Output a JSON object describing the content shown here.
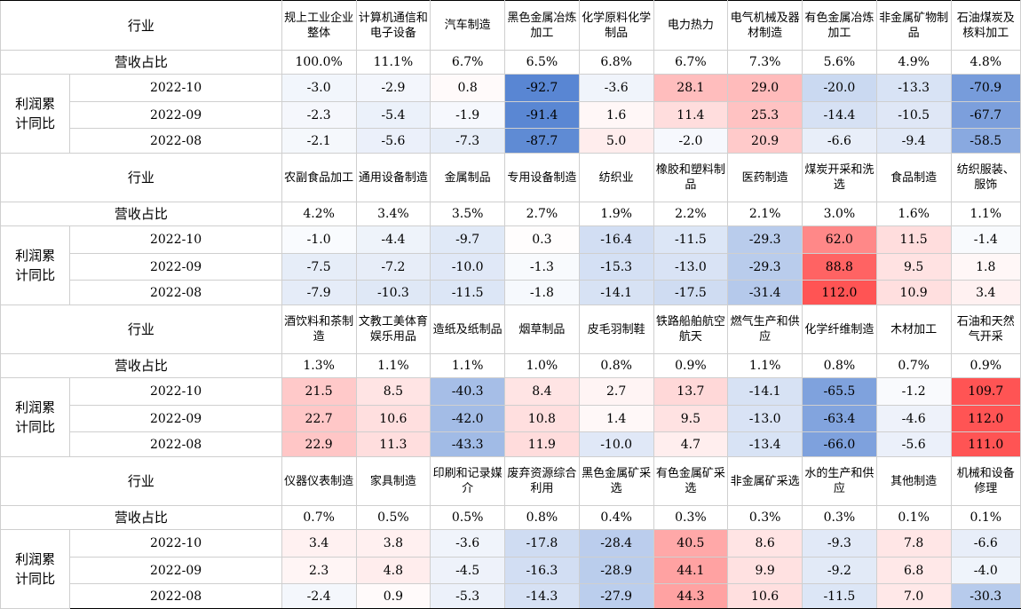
{
  "labels": {
    "industry": "行业",
    "revenue_share": "营收占比",
    "profit_yoy": "利润累计同比"
  },
  "dates": [
    "2022-10",
    "2022-09",
    "2022-08"
  ],
  "colors": {
    "positive": "#f05454",
    "negative": "#4f7fd0",
    "neutral": "#ffffff"
  },
  "blocks": [
    {
      "industries": [
        "规上工业企业整体",
        "计算机通信和电子设备",
        "汽车制造",
        "黑色金属冶炼加工",
        "化学原料化学制品",
        "电力热力",
        "电气机械及器材制造",
        "有色金属冶炼加工",
        "非金属矿物制品",
        "石油煤炭及核料加工"
      ],
      "shares": [
        "100.0%",
        "11.1%",
        "6.7%",
        "6.5%",
        "6.8%",
        "6.7%",
        "7.3%",
        "5.6%",
        "4.9%",
        "4.8%"
      ],
      "values": [
        [
          "-3.0",
          "-2.9",
          "0.8",
          "-92.7",
          "-3.6",
          "28.1",
          "29.0",
          "-20.0",
          "-13.3",
          "-70.9"
        ],
        [
          "-2.3",
          "-5.4",
          "-1.9",
          "-91.4",
          "1.6",
          "11.4",
          "25.3",
          "-14.4",
          "-10.5",
          "-67.7"
        ],
        [
          "-2.1",
          "-5.6",
          "-7.3",
          "-87.7",
          "5.0",
          "-2.0",
          "20.9",
          "-6.6",
          "-9.4",
          "-58.5"
        ]
      ]
    },
    {
      "industries": [
        "农副食品加工",
        "通用设备制造",
        "金属制品",
        "专用设备制造",
        "纺织业",
        "橡胶和塑料制品",
        "医药制造",
        "煤炭开采和洗选",
        "食品制造",
        "纺织服装、服饰"
      ],
      "shares": [
        "4.2%",
        "3.4%",
        "3.5%",
        "2.7%",
        "1.9%",
        "2.2%",
        "2.1%",
        "3.0%",
        "1.6%",
        "1.1%"
      ],
      "values": [
        [
          "-1.0",
          "-4.4",
          "-9.7",
          "0.3",
          "-16.4",
          "-11.5",
          "-29.3",
          "62.0",
          "11.5",
          "-1.4"
        ],
        [
          "-7.5",
          "-7.2",
          "-10.0",
          "-1.3",
          "-15.3",
          "-13.0",
          "-29.3",
          "88.8",
          "9.5",
          "1.8"
        ],
        [
          "-7.9",
          "-10.3",
          "-11.5",
          "-1.8",
          "-14.1",
          "-17.5",
          "-31.4",
          "112.0",
          "10.9",
          "3.4"
        ]
      ]
    },
    {
      "industries": [
        "酒饮料和茶制造",
        "文教工美体育娱乐用品",
        "造纸及纸制品",
        "烟草制品",
        "皮毛羽制鞋",
        "铁路船舶航空航天",
        "燃气生产和供应",
        "化学纤维制造",
        "木材加工",
        "石油和天然气开采"
      ],
      "shares": [
        "1.3%",
        "1.1%",
        "1.1%",
        "1.0%",
        "0.8%",
        "0.9%",
        "1.1%",
        "0.8%",
        "0.7%",
        "0.9%"
      ],
      "values": [
        [
          "21.5",
          "8.5",
          "-40.3",
          "8.4",
          "2.7",
          "13.7",
          "-14.1",
          "-65.5",
          "-1.2",
          "109.7"
        ],
        [
          "22.7",
          "10.6",
          "-42.0",
          "10.8",
          "1.4",
          "9.5",
          "-13.0",
          "-63.4",
          "-4.6",
          "112.0"
        ],
        [
          "22.9",
          "11.3",
          "-43.3",
          "11.9",
          "-10.0",
          "4.7",
          "-13.4",
          "-66.0",
          "-5.6",
          "111.0"
        ]
      ]
    },
    {
      "industries": [
        "仪器仪表制造",
        "家具制造",
        "印刷和记录媒介",
        "废弃资源综合利用",
        "黑色金属矿采选",
        "有色金属矿采选",
        "非金属矿采选",
        "水的生产和供应",
        "其他制造",
        "机械和设备修理"
      ],
      "shares": [
        "0.7%",
        "0.5%",
        "0.5%",
        "0.8%",
        "0.4%",
        "0.3%",
        "0.3%",
        "0.3%",
        "0.1%",
        "0.1%"
      ],
      "values": [
        [
          "3.4",
          "3.8",
          "-3.6",
          "-17.8",
          "-28.4",
          "40.5",
          "8.6",
          "-9.3",
          "7.8",
          "-6.6"
        ],
        [
          "2.3",
          "4.8",
          "-4.5",
          "-16.3",
          "-28.9",
          "44.1",
          "9.9",
          "-9.2",
          "6.8",
          "-4.0"
        ],
        [
          "-2.4",
          "0.9",
          "-5.3",
          "-14.3",
          "-27.9",
          "44.3",
          "10.6",
          "-11.5",
          "7.0",
          "-30.3"
        ]
      ]
    }
  ]
}
